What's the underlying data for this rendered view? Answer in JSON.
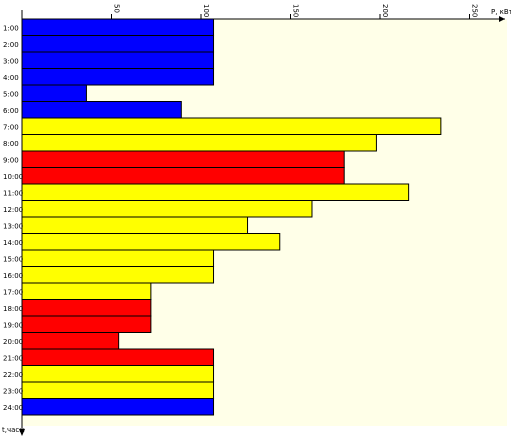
{
  "chart_data": {
    "type": "bar",
    "orientation": "horizontal",
    "xlabel": "P, кВт",
    "ylabel": "t,часы",
    "xlim": [
      0,
      260
    ],
    "xticks": [
      50,
      100,
      150,
      200,
      250
    ],
    "grid": false,
    "categories": [
      "1:00",
      "2:00",
      "3:00",
      "4:00",
      "5:00",
      "6:00",
      "7:00",
      "8:00",
      "9:00",
      "10:00",
      "11:00",
      "12:00",
      "13:00",
      "14:00",
      "15:00",
      "16:00",
      "17:00",
      "18:00",
      "19:00",
      "20:00",
      "21:00",
      "22:00",
      "23:00",
      "24:00"
    ],
    "values": [
      107,
      107,
      107,
      107,
      36,
      89,
      234,
      198,
      180,
      180,
      216,
      162,
      126,
      144,
      107,
      107,
      72,
      72,
      72,
      54,
      107,
      107,
      107,
      107
    ],
    "bar_colors": [
      "#0000ff",
      "#0000ff",
      "#0000ff",
      "#0000ff",
      "#0000ff",
      "#0000ff",
      "#ffff00",
      "#ffff00",
      "#ff0000",
      "#ff0000",
      "#ffff00",
      "#ffff00",
      "#ffff00",
      "#ffff00",
      "#ffff00",
      "#ffff00",
      "#ffff00",
      "#ff0000",
      "#ff0000",
      "#ff0000",
      "#ff0000",
      "#ffff00",
      "#ffff00",
      "#0000ff"
    ],
    "plot_background": "#ffffe8"
  }
}
